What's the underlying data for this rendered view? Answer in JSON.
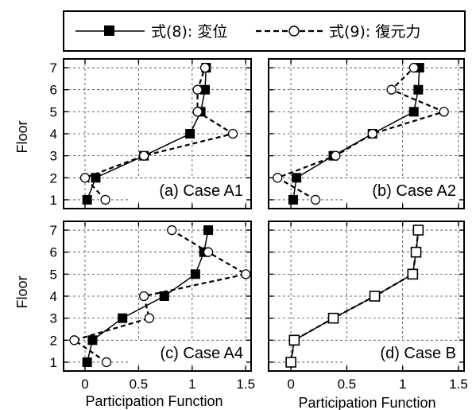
{
  "legend": [
    {
      "label": "式(8): 変位",
      "style": "solid",
      "marker": "filled-square"
    },
    {
      "label": "式(9): 復元力",
      "style": "dashed",
      "marker": "open-circle"
    }
  ],
  "xlabel": "Participation Function",
  "ylabel": "Floor",
  "chart_data": [
    {
      "type": "line",
      "title": "(a) Case A1",
      "xlim": [
        -0.2,
        1.55
      ],
      "ylim": [
        0.6,
        7.4
      ],
      "xticks": [
        0.0,
        0.5,
        1.0,
        1.5
      ],
      "yticks": [
        1,
        2,
        3,
        4,
        5,
        6,
        7
      ],
      "grid": true,
      "series": [
        {
          "name": "式(8): 変位",
          "x": [
            0.02,
            0.1,
            0.55,
            0.98,
            1.08,
            1.12,
            1.13
          ],
          "y": [
            1,
            2,
            3,
            4,
            5,
            6,
            7
          ]
        },
        {
          "name": "式(9): 復元力",
          "x": [
            0.19,
            0.0,
            0.55,
            1.38,
            1.05,
            1.05,
            1.12
          ],
          "y": [
            1,
            2,
            3,
            4,
            5,
            6,
            7
          ]
        }
      ]
    },
    {
      "type": "line",
      "title": "(b) Case A2",
      "xlim": [
        -0.2,
        1.55
      ],
      "ylim": [
        0.6,
        7.4
      ],
      "xticks": [
        0.0,
        0.5,
        1.0,
        1.5
      ],
      "yticks": [
        1,
        2,
        3,
        4,
        5,
        6,
        7
      ],
      "grid": true,
      "series": [
        {
          "name": "式(8): 変位",
          "x": [
            0.02,
            0.05,
            0.38,
            0.73,
            1.1,
            1.14,
            1.15
          ],
          "y": [
            1,
            2,
            3,
            4,
            5,
            6,
            7
          ]
        },
        {
          "name": "式(9): 復元力",
          "x": [
            0.22,
            -0.12,
            0.4,
            0.73,
            1.37,
            0.9,
            1.1
          ],
          "y": [
            1,
            2,
            3,
            4,
            5,
            6,
            7
          ]
        }
      ]
    },
    {
      "type": "line",
      "title": "(c) Case A4",
      "xlim": [
        -0.2,
        1.55
      ],
      "ylim": [
        0.6,
        7.4
      ],
      "xticks": [
        0.0,
        0.5,
        1.0,
        1.5
      ],
      "yticks": [
        1,
        2,
        3,
        4,
        5,
        6,
        7
      ],
      "grid": true,
      "series": [
        {
          "name": "式(8): 変位",
          "x": [
            0.02,
            0.07,
            0.35,
            0.74,
            1.03,
            1.11,
            1.15
          ],
          "y": [
            1,
            2,
            3,
            4,
            5,
            6,
            7
          ]
        },
        {
          "name": "式(9): 復元力",
          "x": [
            0.2,
            -0.1,
            0.6,
            0.55,
            1.5,
            1.15,
            0.81
          ],
          "y": [
            1,
            2,
            3,
            4,
            5,
            6,
            7
          ]
        }
      ]
    },
    {
      "type": "line",
      "title": "(d) Case B",
      "xlim": [
        -0.2,
        1.55
      ],
      "ylim": [
        0.6,
        7.4
      ],
      "xticks": [
        0.0,
        0.5,
        1.0,
        1.5
      ],
      "yticks": [
        1,
        2,
        3,
        4,
        5,
        6,
        7
      ],
      "grid": true,
      "series": [
        {
          "name": "式(8): 変位",
          "x": [
            0.0,
            0.03,
            0.38,
            0.75,
            1.09,
            1.12,
            1.14
          ],
          "y": [
            1,
            2,
            3,
            4,
            5,
            6,
            7
          ]
        },
        {
          "name": "式(9): 復元力",
          "x": [
            0.0,
            0.03,
            0.38,
            0.75,
            1.09,
            1.12,
            1.14
          ],
          "y": [
            1,
            2,
            3,
            4,
            5,
            6,
            7
          ]
        }
      ]
    }
  ]
}
